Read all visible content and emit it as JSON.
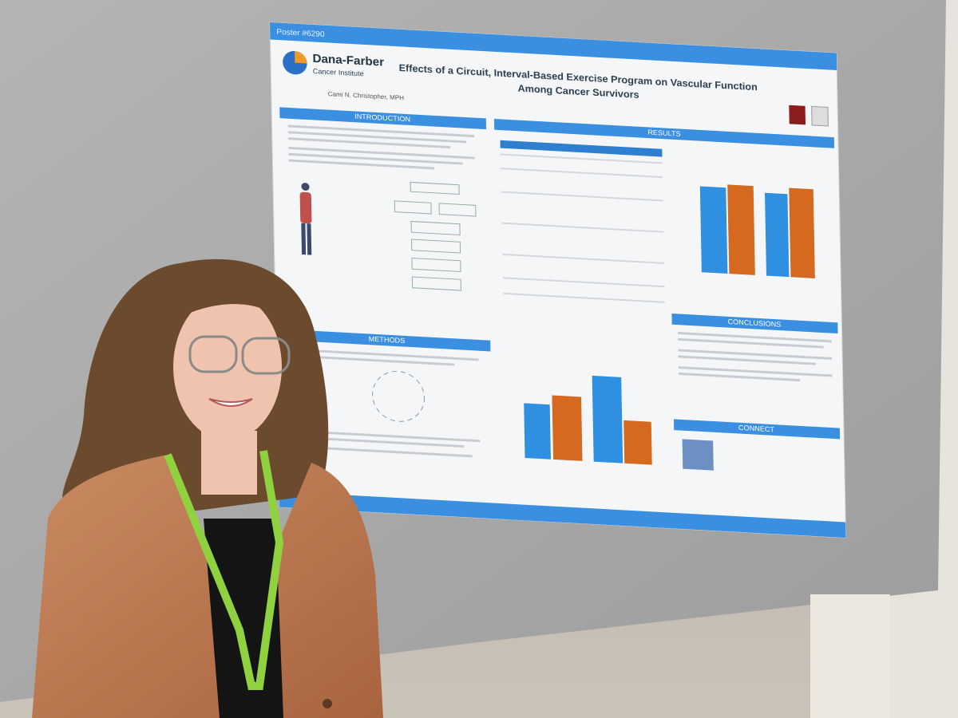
{
  "poster": {
    "number": "Poster #6290",
    "org": {
      "name": "Dana-Farber",
      "sub": "Cancer Institute"
    },
    "title": [
      "Effects of a Circuit, Interval-Based Exercise Program on Vascular Function",
      "Among Cancer Survivors"
    ],
    "authors": "Cami N. Christopher, MPH",
    "sections": {
      "introduction": "INTRODUCTION",
      "methods": "METHODS",
      "results": "RESULTS",
      "conclusions": "CONCLUSIONS",
      "connect": "CONNECT"
    }
  }
}
